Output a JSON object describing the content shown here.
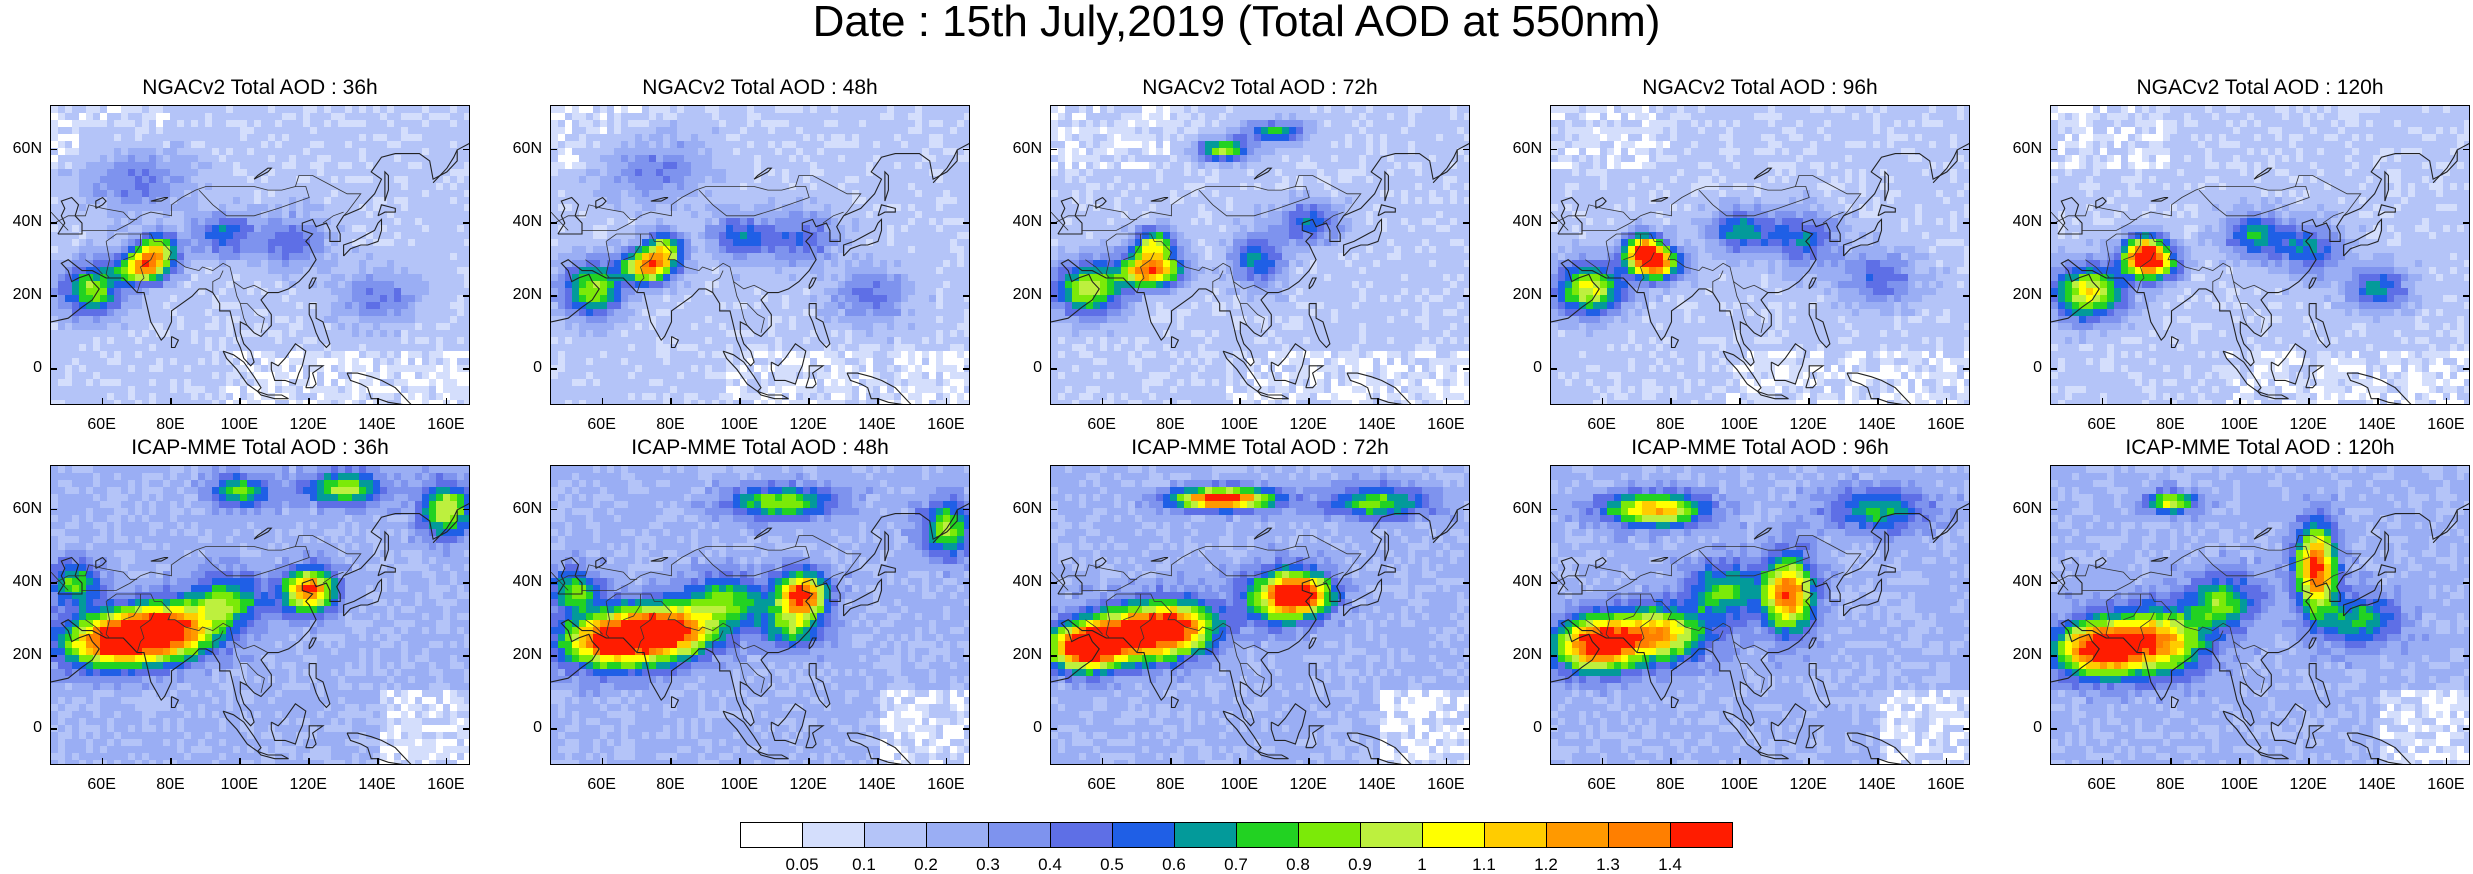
{
  "title": "Date : 15th July,2019 (Total AOD at 550nm)",
  "panels": [
    {
      "title": "NGACv2 Total AOD : 36h",
      "model": "NGACv2",
      "lead": "36h"
    },
    {
      "title": "NGACv2 Total AOD : 48h",
      "model": "NGACv2",
      "lead": "48h"
    },
    {
      "title": "NGACv2 Total AOD : 72h",
      "model": "NGACv2",
      "lead": "72h"
    },
    {
      "title": "NGACv2 Total AOD : 96h",
      "model": "NGACv2",
      "lead": "96h"
    },
    {
      "title": "NGACv2 Total AOD : 120h",
      "model": "NGACv2",
      "lead": "120h"
    },
    {
      "title": "ICAP-MME Total AOD : 36h",
      "model": "ICAP-MME",
      "lead": "36h"
    },
    {
      "title": "ICAP-MME Total AOD : 48h",
      "model": "ICAP-MME",
      "lead": "48h"
    },
    {
      "title": "ICAP-MME Total AOD : 72h",
      "model": "ICAP-MME",
      "lead": "72h"
    },
    {
      "title": "ICAP-MME Total AOD : 96h",
      "model": "ICAP-MME",
      "lead": "96h"
    },
    {
      "title": "ICAP-MME Total AOD : 120h",
      "model": "ICAP-MME",
      "lead": "120h"
    }
  ],
  "lat_labels": [
    "60N",
    "40N",
    "20N",
    "0"
  ],
  "lon_labels": [
    "60E",
    "80E",
    "100E",
    "120E",
    "140E",
    "160E"
  ],
  "map_extent": {
    "lon": [
      45,
      167
    ],
    "lat": [
      -10,
      72
    ]
  },
  "colorbar": {
    "labels": [
      "0.05",
      "0.1",
      "0.2",
      "0.3",
      "0.4",
      "0.5",
      "0.6",
      "0.7",
      "0.8",
      "0.9",
      "1",
      "1.1",
      "1.2",
      "1.3",
      "1.4"
    ],
    "colors": [
      "#ffffff",
      "#d4defc",
      "#b4c4f8",
      "#9aaef4",
      "#7e93ee",
      "#5e6fe6",
      "#1f5fe6",
      "#039a9a",
      "#22d222",
      "#7bea08",
      "#bdf03e",
      "#ffff00",
      "#ffcc00",
      "#ff9900",
      "#ff7f00",
      "#ff1c00"
    ]
  }
}
